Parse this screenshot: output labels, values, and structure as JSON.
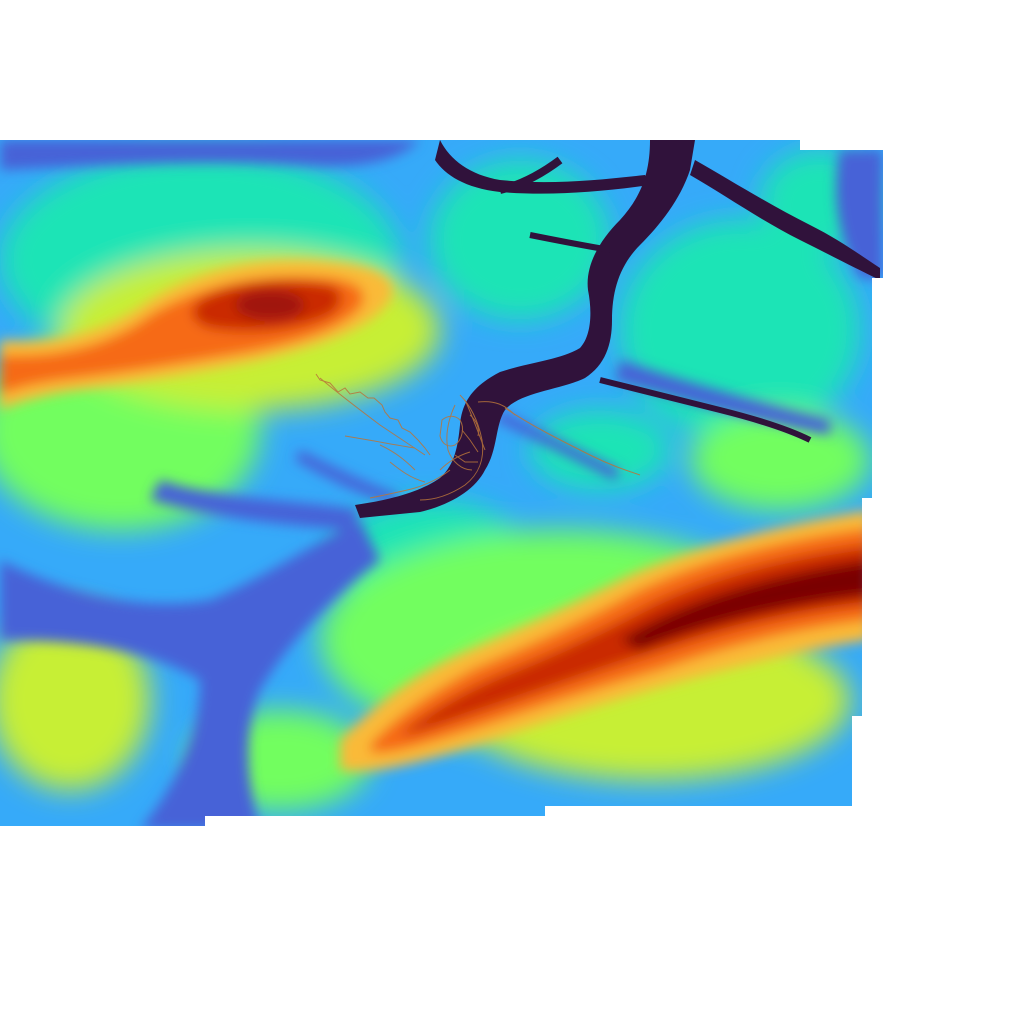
{
  "map": {
    "type": "elevation-heatmap",
    "colormap": "turbo",
    "colors": {
      "background": "#ffffff",
      "lowest": "#30123b",
      "low": "#4662d7",
      "low_mid": "#36aaf9",
      "mid": "#1ae4b6",
      "mid_high": "#72fe5e",
      "high": "#c7ef34",
      "higher": "#faba39",
      "very_high": "#f66b19",
      "peak": "#ca2a04",
      "summit": "#7a0403",
      "overlay_lines": "#b8743a"
    },
    "features": {
      "river_valley": "dark-purple",
      "ridge_upper_left": "orange-red",
      "ridge_lower_right": "dark-red",
      "route_overlay": "brown-lines"
    }
  }
}
